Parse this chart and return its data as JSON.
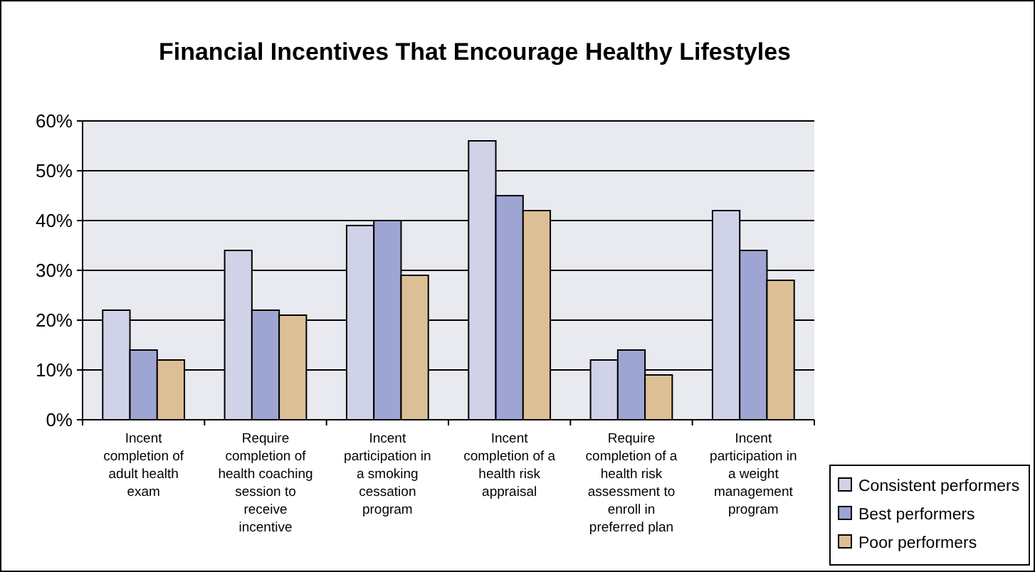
{
  "chart_data": {
    "type": "bar",
    "title": "Financial Incentives That Encourage Healthy Lifestyles",
    "categories": [
      "Incent completion of adult health exam",
      "Require completion of health coaching session to receive incentive",
      "Incent participation in a smoking cessation program",
      "Incent completion of a health risk appraisal",
      "Require completion of a health risk assessment to enroll in preferred plan",
      "Incent participation in a weight management program"
    ],
    "series": [
      {
        "name": "Consistent performers",
        "color": "#d0d2e8",
        "values": [
          22,
          34,
          39,
          56,
          12,
          42
        ]
      },
      {
        "name": "Best performers",
        "color": "#9fa5d2",
        "values": [
          14,
          22,
          40,
          45,
          14,
          34
        ]
      },
      {
        "name": "Poor performers",
        "color": "#dcbf95",
        "values": [
          12,
          21,
          29,
          42,
          9,
          28
        ]
      }
    ],
    "ylim": [
      0,
      60
    ],
    "yticks": [
      {
        "value": 0,
        "label": "0%"
      },
      {
        "value": 10,
        "label": "10%"
      },
      {
        "value": 20,
        "label": "20%"
      },
      {
        "value": 30,
        "label": "30%"
      },
      {
        "value": 40,
        "label": "40%"
      },
      {
        "value": 50,
        "label": "50%"
      },
      {
        "value": 60,
        "label": "60%"
      }
    ],
    "grid": "y",
    "legend": "bottom right"
  }
}
